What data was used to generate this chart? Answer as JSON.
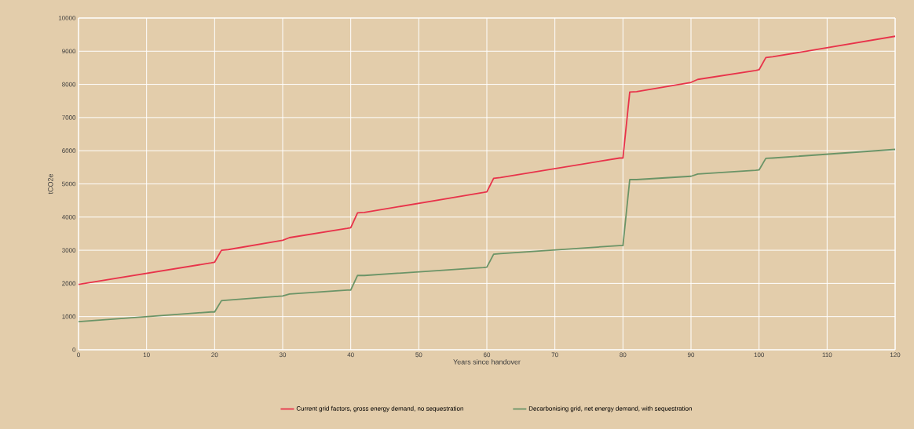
{
  "chart_data": {
    "type": "line",
    "xlabel": "Years since handover",
    "ylabel": "tCO2e",
    "xlim": [
      0,
      120
    ],
    "ylim": [
      0,
      10000
    ],
    "xticks": [
      0,
      10,
      20,
      30,
      40,
      50,
      60,
      70,
      80,
      90,
      100,
      110,
      120
    ],
    "yticks": [
      0,
      1000,
      2000,
      3000,
      4000,
      5000,
      6000,
      7000,
      8000,
      9000,
      10000
    ],
    "grid": true,
    "legend": "bottom",
    "marker": "none",
    "line_style": "solid",
    "series": [
      {
        "name": "Current grid factors, gross energy demand, no sequestration",
        "color": "#e8334a",
        "x": [
          0,
          19.5,
          20,
          21,
          22,
          30,
          31,
          39.5,
          40,
          41,
          42,
          59.5,
          60,
          61,
          62,
          79.5,
          80,
          81,
          82,
          90,
          91,
          99.5,
          100,
          101,
          102,
          120
        ],
        "values": [
          1970,
          2620,
          2640,
          3000,
          3020,
          3300,
          3380,
          3660,
          3680,
          4130,
          4140,
          4740,
          4760,
          5170,
          5190,
          5780,
          5780,
          7770,
          7780,
          8060,
          8150,
          8420,
          8440,
          8810,
          8830,
          9450
        ]
      },
      {
        "name": "Decarbonising grid, net energy demand, with sequestration",
        "color": "#6b9467",
        "x": [
          0,
          19.5,
          20,
          21,
          22,
          30,
          31,
          39.5,
          40,
          41,
          42,
          59.5,
          60,
          61,
          62,
          79.5,
          80,
          81,
          82,
          90,
          91,
          99.5,
          100,
          101,
          102,
          120
        ],
        "values": [
          850,
          1140,
          1140,
          1480,
          1500,
          1620,
          1680,
          1800,
          1800,
          2240,
          2240,
          2480,
          2490,
          2880,
          2900,
          3140,
          3140,
          5130,
          5130,
          5230,
          5300,
          5410,
          5420,
          5770,
          5780,
          6040
        ]
      }
    ]
  }
}
